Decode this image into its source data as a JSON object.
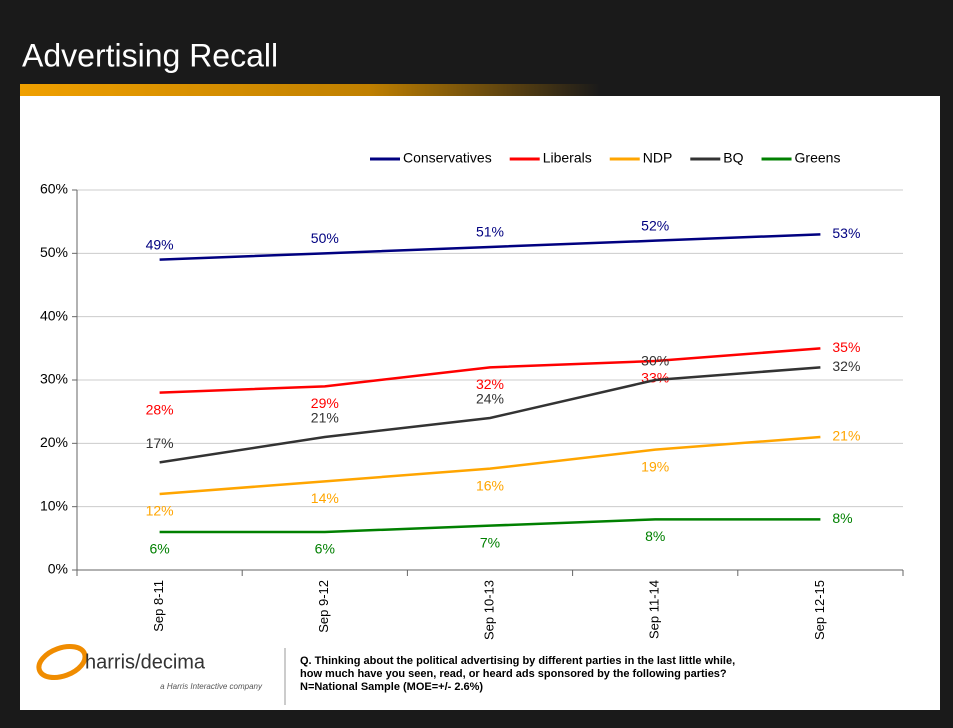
{
  "chart_data": {
    "type": "line",
    "title": "Advertising Recall",
    "categories": [
      "Sep 8-11",
      "Sep 9-12",
      "Sep 10-13",
      "Sep 11-14",
      "Sep 12-15"
    ],
    "series": [
      {
        "name": "Conservatives",
        "color": "#000080",
        "values": [
          49,
          50,
          51,
          52,
          53
        ],
        "value_labels": [
          "49%",
          "50%",
          "51%",
          "52%",
          "53%"
        ]
      },
      {
        "name": "Liberals",
        "color": "#ff0000",
        "values": [
          28,
          29,
          32,
          33,
          35
        ],
        "value_labels": [
          "28%",
          "29%",
          "32%",
          "33%",
          "35%"
        ]
      },
      {
        "name": "NDP",
        "color": "#ffa500",
        "values": [
          12,
          14,
          16,
          19,
          21
        ],
        "value_labels": [
          "12%",
          "14%",
          "16%",
          "19%",
          "21%"
        ]
      },
      {
        "name": "BQ",
        "color": "#333333",
        "values": [
          17,
          21,
          24,
          30,
          32
        ],
        "value_labels": [
          "17%",
          "21%",
          "24%",
          "30%",
          "32%"
        ]
      },
      {
        "name": "Greens",
        "color": "#008000",
        "values": [
          6,
          6,
          7,
          8,
          8
        ],
        "value_labels": [
          "6%",
          "6%",
          "7%",
          "8%",
          "8%"
        ]
      }
    ],
    "ylim": [
      0,
      60
    ],
    "yticks": [
      {
        "value": 0,
        "label": "0%"
      },
      {
        "value": 10,
        "label": "10%"
      },
      {
        "value": 20,
        "label": "20%"
      },
      {
        "value": 30,
        "label": "30%"
      },
      {
        "value": 40,
        "label": "40%"
      },
      {
        "value": 50,
        "label": "50%"
      },
      {
        "value": 60,
        "label": "60%"
      }
    ],
    "grid": true,
    "legend": "top"
  },
  "footer": {
    "logo": "harris/decima",
    "logo_tagline": "a Harris Interactive company",
    "question": [
      "Q. Thinking about the political advertising by different parties in the last little while,",
      "how much have you seen, read, or heard ads sponsored by the following parties?",
      "N=National Sample (MOE=+/- 2.6%)"
    ]
  }
}
